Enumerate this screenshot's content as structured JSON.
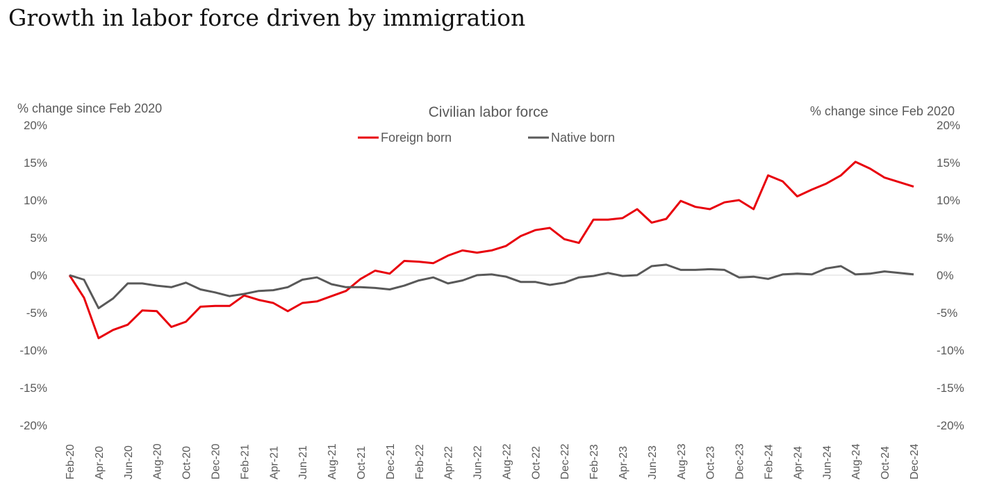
{
  "page": {
    "title": "Growth in labor force driven by immigration"
  },
  "chart_data": {
    "type": "line",
    "title": "Civilian labor force",
    "ylabel_left": "% change since Feb 2020",
    "ylabel_right": "% change since Feb 2020",
    "ylim": [
      -20,
      20
    ],
    "y_ticks": [
      20,
      15,
      10,
      5,
      0,
      -5,
      -10,
      -15,
      -20
    ],
    "y_tick_labels": [
      "20%",
      "15%",
      "10%",
      "5%",
      "0%",
      "-5%",
      "-10%",
      "-15%",
      "-20%"
    ],
    "legend_position": "top-center",
    "grid": false,
    "x_tick_labels": [
      "Feb-20",
      "Apr-20",
      "Jun-20",
      "Aug-20",
      "Oct-20",
      "Dec-20",
      "Feb-21",
      "Apr-21",
      "Jun-21",
      "Aug-21",
      "Oct-21",
      "Dec-21",
      "Feb-22",
      "Apr-22",
      "Jun-22",
      "Aug-22",
      "Oct-22",
      "Dec-22",
      "Feb-23",
      "Apr-23",
      "Jun-23",
      "Aug-23",
      "Oct-23",
      "Dec-23",
      "Feb-24",
      "Apr-24",
      "Jun-24",
      "Aug-24",
      "Oct-24",
      "Dec-24"
    ],
    "x": [
      "Feb-20",
      "Mar-20",
      "Apr-20",
      "May-20",
      "Jun-20",
      "Jul-20",
      "Aug-20",
      "Sep-20",
      "Oct-20",
      "Nov-20",
      "Dec-20",
      "Jan-21",
      "Feb-21",
      "Mar-21",
      "Apr-21",
      "May-21",
      "Jun-21",
      "Jul-21",
      "Aug-21",
      "Sep-21",
      "Oct-21",
      "Nov-21",
      "Dec-21",
      "Jan-22",
      "Feb-22",
      "Mar-22",
      "Apr-22",
      "May-22",
      "Jun-22",
      "Jul-22",
      "Aug-22",
      "Sep-22",
      "Oct-22",
      "Nov-22",
      "Dec-22",
      "Jan-23",
      "Feb-23",
      "Mar-23",
      "Apr-23",
      "May-23",
      "Jun-23",
      "Jul-23",
      "Aug-23",
      "Sep-23",
      "Oct-23",
      "Nov-23",
      "Dec-23",
      "Jan-24",
      "Feb-24",
      "Mar-24",
      "Apr-24",
      "May-24",
      "Jun-24",
      "Jul-24",
      "Aug-24",
      "Sep-24",
      "Oct-24",
      "Nov-24",
      "Dec-24"
    ],
    "series": [
      {
        "name": "Foreign born",
        "color": "#e8000b",
        "values": [
          0.0,
          -3.0,
          -8.4,
          -7.3,
          -6.6,
          -4.7,
          -4.8,
          -6.9,
          -6.2,
          -4.2,
          -4.1,
          -4.1,
          -2.7,
          -3.3,
          -3.7,
          -4.8,
          -3.7,
          -3.5,
          -2.8,
          -2.1,
          -0.5,
          0.6,
          0.2,
          1.9,
          1.8,
          1.6,
          2.6,
          3.3,
          3.0,
          3.3,
          3.9,
          5.2,
          6.0,
          6.3,
          4.8,
          4.3,
          7.4,
          7.4,
          7.6,
          8.8,
          7.0,
          7.5,
          9.9,
          9.1,
          8.8,
          9.7,
          10.0,
          8.8,
          13.3,
          12.5,
          10.5,
          11.4,
          12.2,
          13.3,
          15.1,
          14.2,
          13.0,
          12.4,
          11.8
        ]
      },
      {
        "name": "Native born",
        "color": "#595959",
        "values": [
          0.0,
          -0.6,
          -4.4,
          -3.1,
          -1.1,
          -1.1,
          -1.4,
          -1.6,
          -1.0,
          -1.9,
          -2.3,
          -2.8,
          -2.5,
          -2.1,
          -2.0,
          -1.6,
          -0.6,
          -0.3,
          -1.2,
          -1.6,
          -1.6,
          -1.7,
          -1.9,
          -1.4,
          -0.7,
          -0.3,
          -1.1,
          -0.7,
          0.0,
          0.1,
          -0.2,
          -0.9,
          -0.9,
          -1.3,
          -1.0,
          -0.3,
          -0.1,
          0.3,
          -0.1,
          0.0,
          1.2,
          1.4,
          0.7,
          0.7,
          0.8,
          0.7,
          -0.3,
          -0.2,
          -0.5,
          0.1,
          0.2,
          0.1,
          0.9,
          1.2,
          0.1,
          0.2,
          0.5,
          0.3,
          0.1
        ]
      }
    ]
  }
}
